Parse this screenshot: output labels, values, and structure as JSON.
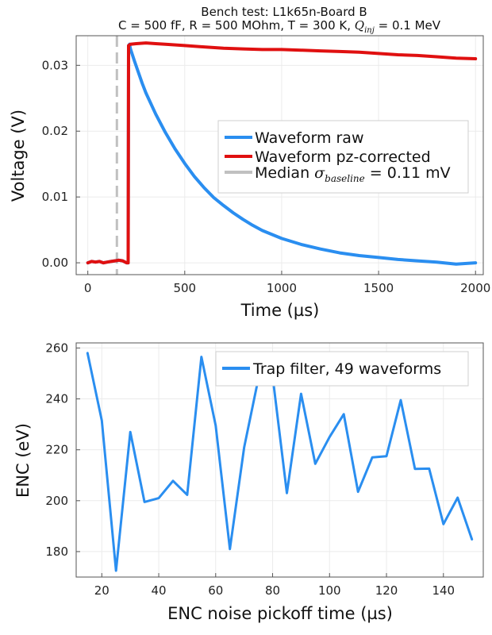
{
  "chart_data": [
    {
      "type": "line",
      "title": "Bench test: L1k65n-Board B",
      "subtitle": {
        "text": "C = 500 fF, R = 500 MOhm, T = 300 K, ",
        "q_symbol": "Q",
        "q_sub": "inj",
        "q_value": " = 0.1 MeV"
      },
      "xlabel": "Time (µs)",
      "ylabel": "Voltage (V)",
      "xlim": [
        -60,
        2040
      ],
      "ylim": [
        -0.0018,
        0.0345
      ],
      "xticks": [
        0,
        500,
        1000,
        1500,
        2000
      ],
      "xtick_labels": [
        "0",
        "500",
        "1000",
        "1500",
        "2000"
      ],
      "yticks": [
        0.0,
        0.01,
        0.02,
        0.03
      ],
      "ytick_labels": [
        "0.00",
        "0.01",
        "0.02",
        "0.03"
      ],
      "grid": true,
      "legend_position": "right",
      "baseline_marker_x": 150,
      "series": [
        {
          "name": "Waveform raw",
          "color": "#2a8ef0",
          "x": [
            0,
            20,
            40,
            60,
            80,
            100,
            120,
            140,
            160,
            180,
            200,
            208,
            210,
            215,
            220,
            240,
            260,
            280,
            300,
            350,
            400,
            450,
            500,
            550,
            600,
            650,
            700,
            750,
            800,
            850,
            900,
            950,
            1000,
            1100,
            1200,
            1300,
            1400,
            1500,
            1600,
            1700,
            1800,
            1900,
            2000
          ],
          "y": [
            0.0,
            0.0002,
            0.0001,
            0.0002,
            0.0,
            0.0001,
            0.0002,
            0.0003,
            0.0004,
            0.0003,
            0.0,
            0.0,
            0.033,
            0.0332,
            0.0325,
            0.0307,
            0.029,
            0.0273,
            0.0258,
            0.0226,
            0.0198,
            0.0173,
            0.0151,
            0.0131,
            0.0114,
            0.0099,
            0.0087,
            0.0076,
            0.0066,
            0.0057,
            0.0049,
            0.0043,
            0.0037,
            0.0028,
            0.0021,
            0.0015,
            0.0011,
            0.0008,
            0.0005,
            0.0003,
            0.0001,
            -0.0002,
            0.0
          ]
        },
        {
          "name": "Waveform pz-corrected",
          "color": "#e01010",
          "x": [
            0,
            20,
            40,
            60,
            80,
            100,
            120,
            140,
            160,
            180,
            200,
            208,
            210,
            215,
            220,
            250,
            300,
            350,
            400,
            500,
            600,
            700,
            800,
            900,
            1000,
            1100,
            1200,
            1300,
            1400,
            1500,
            1600,
            1700,
            1800,
            1900,
            2000
          ],
          "y": [
            0.0,
            0.0002,
            0.0001,
            0.0002,
            0.0,
            0.0001,
            0.0002,
            0.0003,
            0.0004,
            0.0003,
            0.0,
            0.0,
            0.033,
            0.0331,
            0.0332,
            0.0333,
            0.0334,
            0.0333,
            0.0332,
            0.033,
            0.0328,
            0.0326,
            0.0325,
            0.0324,
            0.0324,
            0.0323,
            0.0322,
            0.0321,
            0.032,
            0.0318,
            0.0316,
            0.0315,
            0.0313,
            0.0311,
            0.031
          ]
        },
        {
          "name": "Median ",
          "sigma_symbol": "σ",
          "sigma_sub": "baseline",
          "value_text": " = 0.11 mV",
          "color": "#c0c0c0",
          "dashed": true
        }
      ]
    },
    {
      "type": "line",
      "xlabel": "ENC noise pickoff time (µs)",
      "ylabel": "ENC (eV)",
      "xlim": [
        11,
        154
      ],
      "ylim": [
        170,
        262
      ],
      "xticks": [
        20,
        40,
        60,
        80,
        100,
        120,
        140
      ],
      "xtick_labels": [
        "20",
        "40",
        "60",
        "80",
        "100",
        "120",
        "140"
      ],
      "yticks": [
        180,
        200,
        220,
        240,
        260
      ],
      "ytick_labels": [
        "180",
        "200",
        "220",
        "240",
        "260"
      ],
      "grid": true,
      "legend_position": "top-right",
      "series": [
        {
          "name": "Trap filter, 49 waveforms",
          "color": "#2a8ef0",
          "x": [
            15,
            20,
            25,
            30,
            35,
            40,
            45,
            50,
            55,
            60,
            65,
            70,
            75,
            80,
            85,
            90,
            95,
            100,
            105,
            110,
            115,
            120,
            125,
            130,
            135,
            140,
            145,
            150
          ],
          "y": [
            258,
            231.5,
            172.5,
            227,
            199.5,
            201,
            207.8,
            202.3,
            256.5,
            229.5,
            181,
            221,
            248,
            249,
            203,
            242,
            214.5,
            225,
            234,
            203.5,
            217,
            217.5,
            239.5,
            212.5,
            212.6,
            190.8,
            201.2,
            184.8
          ]
        }
      ]
    }
  ]
}
